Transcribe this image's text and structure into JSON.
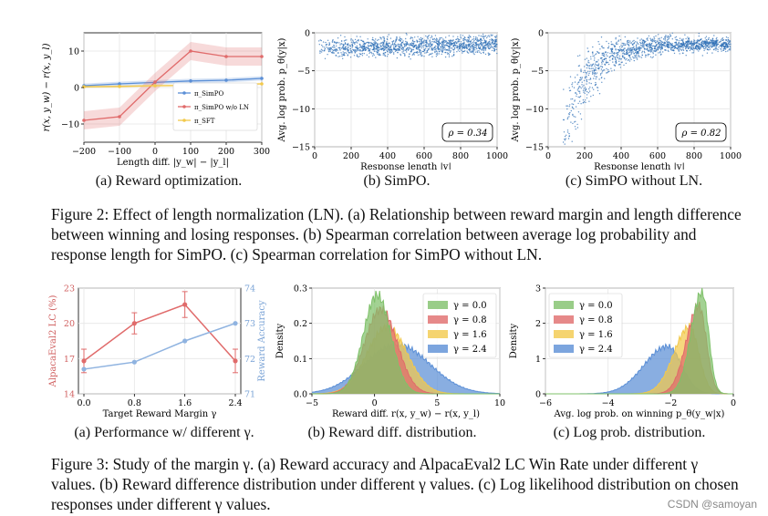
{
  "figure2": {
    "label": "Figure 2:",
    "caption": "Effect of length normalization (LN). (a) Relationship between reward margin and length difference between winning and losing responses. (b) Spearman correlation between average log probability and response length for SimPO. (c) Spearman correlation for SimPO without LN.",
    "subcaptions": [
      "(a) Reward optimization.",
      "(b) SimPO.",
      "(c) SimPO without LN."
    ]
  },
  "figure3": {
    "label": "Figure 3:",
    "caption": "Study of the margin γ. (a) Reward accuracy and AlpacaEval2 LC Win Rate under different γ values. (b) Reward difference distribution under different γ values. (c) Log likelihood distribution on chosen responses under different γ values.",
    "subcaptions": [
      "(a) Performance w/ different γ.",
      "(b) Reward diff. distribution.",
      "(c) Log prob. distribution."
    ]
  },
  "watermark": "CSDN @samoyan",
  "colors": {
    "blue": "#5b8fd6",
    "red": "#e06b6b",
    "yellow": "#f2c94c",
    "green": "#7fc16a",
    "acc_blue": "#8fb3e0",
    "lc_red": "#e88080"
  },
  "chart_data": [
    {
      "id": "fig2a",
      "type": "line",
      "title": "",
      "xlabel": "Length diff. |y_w| − |y_l|",
      "ylabel": "r(x, y_w) − r(x, y_l)",
      "xlim": [
        -200,
        300
      ],
      "ylim": [
        -15,
        15
      ],
      "xticks": [
        -200,
        -100,
        0,
        100,
        200,
        300
      ],
      "yticks": [
        -10,
        0,
        10
      ],
      "x": [
        -200,
        -100,
        0,
        100,
        200,
        300
      ],
      "series": [
        {
          "name": "π_SimPO",
          "color": "#5b8fd6",
          "values": [
            0.5,
            1.0,
            1.4,
            1.8,
            2.0,
            2.5
          ],
          "band": 0.6
        },
        {
          "name": "π_SimPO w/o LN",
          "color": "#e06b6b",
          "values": [
            -9,
            -8,
            1.5,
            10,
            8.5,
            8.5
          ],
          "band": 2.5
        },
        {
          "name": "π_SFT",
          "color": "#f2c94c",
          "values": [
            0.2,
            0.3,
            0.5,
            0.6,
            0.8,
            1.0
          ],
          "band": 0.3
        }
      ],
      "legend": [
        "π_SimPO",
        "π_SimPO w/o LN",
        "π_SFT"
      ],
      "legend_loc": "lower-right"
    },
    {
      "id": "fig2b",
      "type": "scatter",
      "xlabel": "Response length |y|",
      "ylabel": "Avg. log prob. p_θ(y|x)",
      "xlim": [
        0,
        1000
      ],
      "ylim": [
        -15,
        0
      ],
      "xticks": [
        0,
        200,
        400,
        600,
        800,
        1000
      ],
      "yticks": [
        -15,
        -10,
        -5,
        0
      ],
      "annotation": "ρ = 0.34",
      "trend": "flat band around -1.5 to -2.5"
    },
    {
      "id": "fig2c",
      "type": "scatter",
      "xlabel": "Response length |y|",
      "ylabel": "Avg. log prob. p_θ(y|x)",
      "xlim": [
        0,
        1000
      ],
      "ylim": [
        -15,
        0
      ],
      "xticks": [
        0,
        200,
        400,
        600,
        800,
        1000
      ],
      "yticks": [
        -15,
        -10,
        -5,
        0
      ],
      "annotation": "ρ = 0.82",
      "trend": "rising from about -12 to -1.5"
    },
    {
      "id": "fig3a",
      "type": "line",
      "xlabel": "Target Reward Margin γ",
      "ylabel": "AlpacaEval2 LC (%)",
      "ylabel2": "Reward Accuracy",
      "x": [
        0.0,
        0.8,
        1.6,
        2.4
      ],
      "xticks": [
        "0.0",
        "0.8",
        "1.6",
        "2.4"
      ],
      "ylim": [
        14,
        23
      ],
      "yticks": [
        14,
        17,
        20,
        23
      ],
      "ylim2": [
        71,
        74
      ],
      "yticks2": [
        71,
        72,
        73,
        74
      ],
      "series": [
        {
          "name": "AlpacaEval2 LC (%)",
          "axis": "left",
          "color": "#e06b6b",
          "values": [
            16.8,
            20.0,
            21.6,
            16.8
          ],
          "err": [
            1.0,
            0.9,
            1.1,
            1.0
          ]
        },
        {
          "name": "Reward Accuracy",
          "axis": "right",
          "color": "#8fb3e0",
          "values": [
            71.7,
            71.9,
            72.5,
            73.0
          ]
        }
      ]
    },
    {
      "id": "fig3b",
      "type": "area",
      "xlabel": "Reward diff. r(x, y_w) − r(x, y_l)",
      "ylabel": "Density",
      "xlim": [
        -5,
        10
      ],
      "ylim": [
        0,
        0.3
      ],
      "xticks": [
        -5,
        0,
        5,
        10
      ],
      "yticks": [
        0.0,
        0.1,
        0.2,
        0.3
      ],
      "series": [
        {
          "name": "γ = 0.0",
          "color": "#7fc16a",
          "mean": 0.2,
          "sd": 1.1,
          "peak": 0.28
        },
        {
          "name": "γ = 0.8",
          "color": "#e06b6b",
          "mean": 0.5,
          "sd": 1.3,
          "peak": 0.24
        },
        {
          "name": "γ = 1.6",
          "color": "#f2c94c",
          "mean": 1.0,
          "sd": 1.6,
          "peak": 0.19
        },
        {
          "name": "γ = 2.4",
          "color": "#5b8fd6",
          "mean": 1.8,
          "sd": 2.6,
          "peak": 0.14
        }
      ],
      "legend_loc": "top-right"
    },
    {
      "id": "fig3c",
      "type": "area",
      "xlabel": "Avg. log prob. on winning p_θ(y_w|x)",
      "ylabel": "Density",
      "xlim": [
        -6,
        0
      ],
      "ylim": [
        0,
        3
      ],
      "xticks": [
        -6,
        -4,
        -2,
        0
      ],
      "yticks": [
        0,
        1,
        2,
        3
      ],
      "series": [
        {
          "name": "γ = 0.0",
          "color": "#7fc16a",
          "mean": -1.0,
          "sd": 0.35,
          "peak": 2.9
        },
        {
          "name": "γ = 0.8",
          "color": "#e06b6b",
          "mean": -1.1,
          "sd": 0.4,
          "peak": 2.5
        },
        {
          "name": "γ = 1.6",
          "color": "#f2c94c",
          "mean": -1.4,
          "sd": 0.5,
          "peak": 1.9
        },
        {
          "name": "γ = 2.4",
          "color": "#5b8fd6",
          "mean": -2.1,
          "sd": 0.75,
          "peak": 1.35
        }
      ],
      "legend_loc": "top-left"
    }
  ]
}
